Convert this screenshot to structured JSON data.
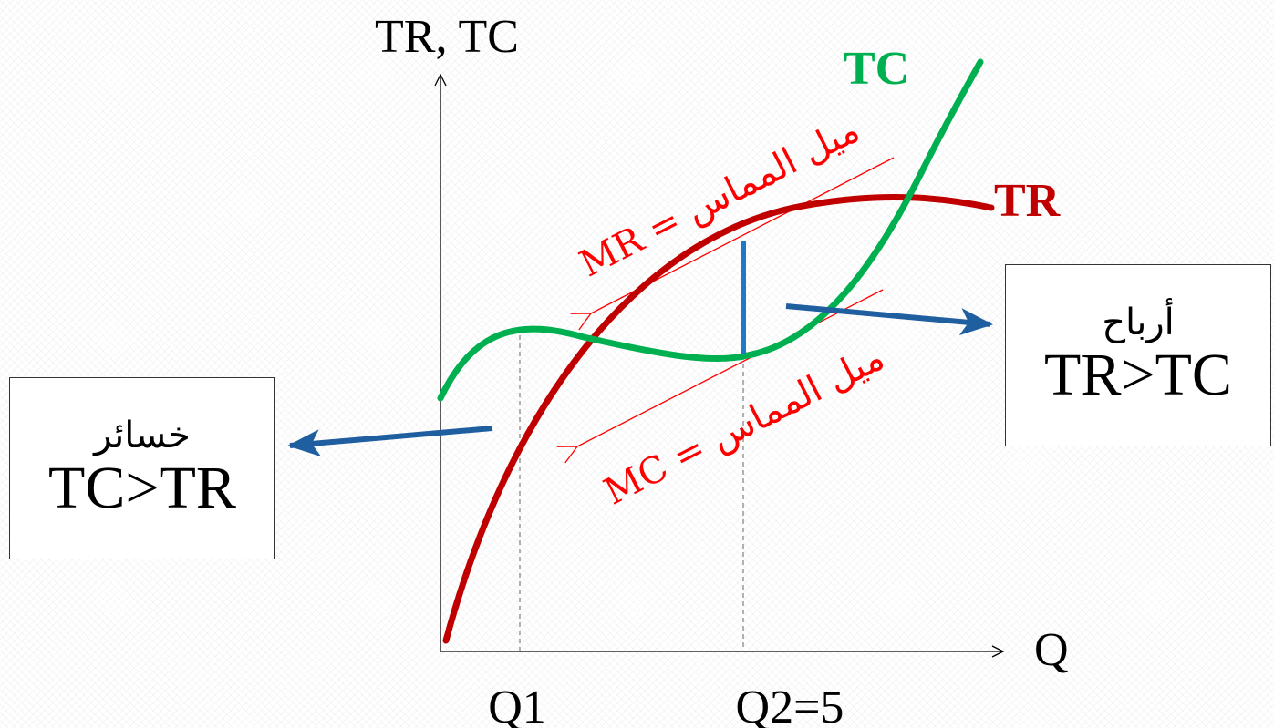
{
  "axes": {
    "y_label": "TR, TC",
    "x_label": "Q",
    "x_ticks": [
      "Q1",
      "Q2=5"
    ]
  },
  "curves": {
    "tc": {
      "label": "TC",
      "color": "#00b050"
    },
    "tr": {
      "label": "TR",
      "color": "#c00000"
    }
  },
  "tangents": {
    "mr_label": "MR = ميل المماس",
    "mc_label": "MC = ميل المماس",
    "color": "#ff0000"
  },
  "profit_gap_color": "#1f78c8",
  "arrow_color": "#1f5fa0",
  "loss_box": {
    "arabic": "خسائر",
    "english": "TC>TR"
  },
  "profit_box": {
    "arabic": "أرباح",
    "english": "TR>TC"
  }
}
